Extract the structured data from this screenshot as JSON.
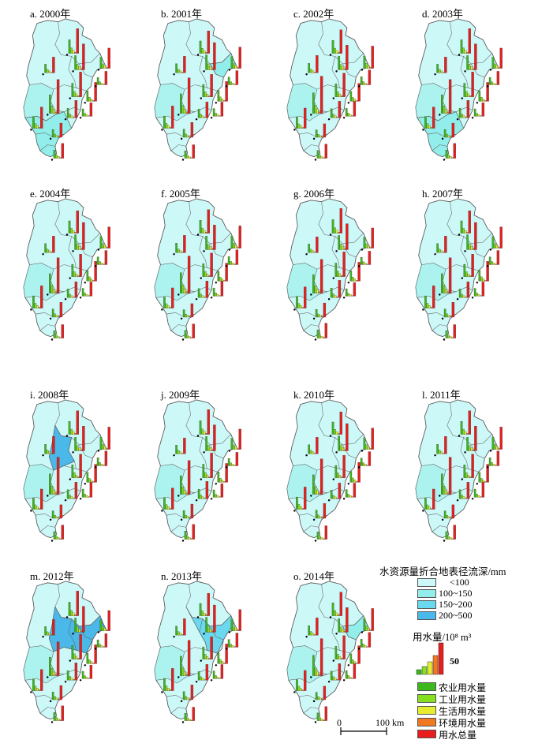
{
  "panels": [
    {
      "label": "a. 2000年",
      "highlight": "south"
    },
    {
      "label": "b. 2001年",
      "highlight": "east"
    },
    {
      "label": "c. 2002年",
      "highlight": "none"
    },
    {
      "label": "d. 2003年",
      "highlight": "south"
    },
    {
      "label": "e. 2004年",
      "highlight": "none"
    },
    {
      "label": "f. 2005年",
      "highlight": "none"
    },
    {
      "label": "g. 2006年",
      "highlight": "none"
    },
    {
      "label": "h. 2007年",
      "highlight": "none"
    },
    {
      "label": "i. 2008年",
      "highlight": "beijing"
    },
    {
      "label": "j. 2009年",
      "highlight": "none"
    },
    {
      "label": "k. 2010年",
      "highlight": "none"
    },
    {
      "label": "l. 2011年",
      "highlight": "none"
    },
    {
      "label": "m. 2012年",
      "highlight": "north-east"
    },
    {
      "label": "n. 2013年",
      "highlight": "north"
    },
    {
      "label": "o. 2014年",
      "highlight": "east"
    }
  ],
  "legend": {
    "runoff_title": "水资源量折合地表径流深/mm",
    "runoff_classes": [
      {
        "label": "<100",
        "color": "#cdf8f8"
      },
      {
        "label": "100~150",
        "color": "#92eeea"
      },
      {
        "label": "150~200",
        "color": "#6ad8ef"
      },
      {
        "label": "200~500",
        "color": "#4ab8e8"
      }
    ],
    "water_use_title": "用水量/10⁸ m³",
    "water_use_scale_value": "50",
    "water_use_types": [
      {
        "label": "农业用水量",
        "color": "#3cb81e"
      },
      {
        "label": "工业用水量",
        "color": "#86e020"
      },
      {
        "label": "生活用水量",
        "color": "#e6ec30"
      },
      {
        "label": "环境用水量",
        "color": "#f07820"
      },
      {
        "label": "用水总量",
        "color": "#e81e1e"
      }
    ],
    "scale_bar": {
      "start": "0",
      "end": "100 km"
    }
  }
}
